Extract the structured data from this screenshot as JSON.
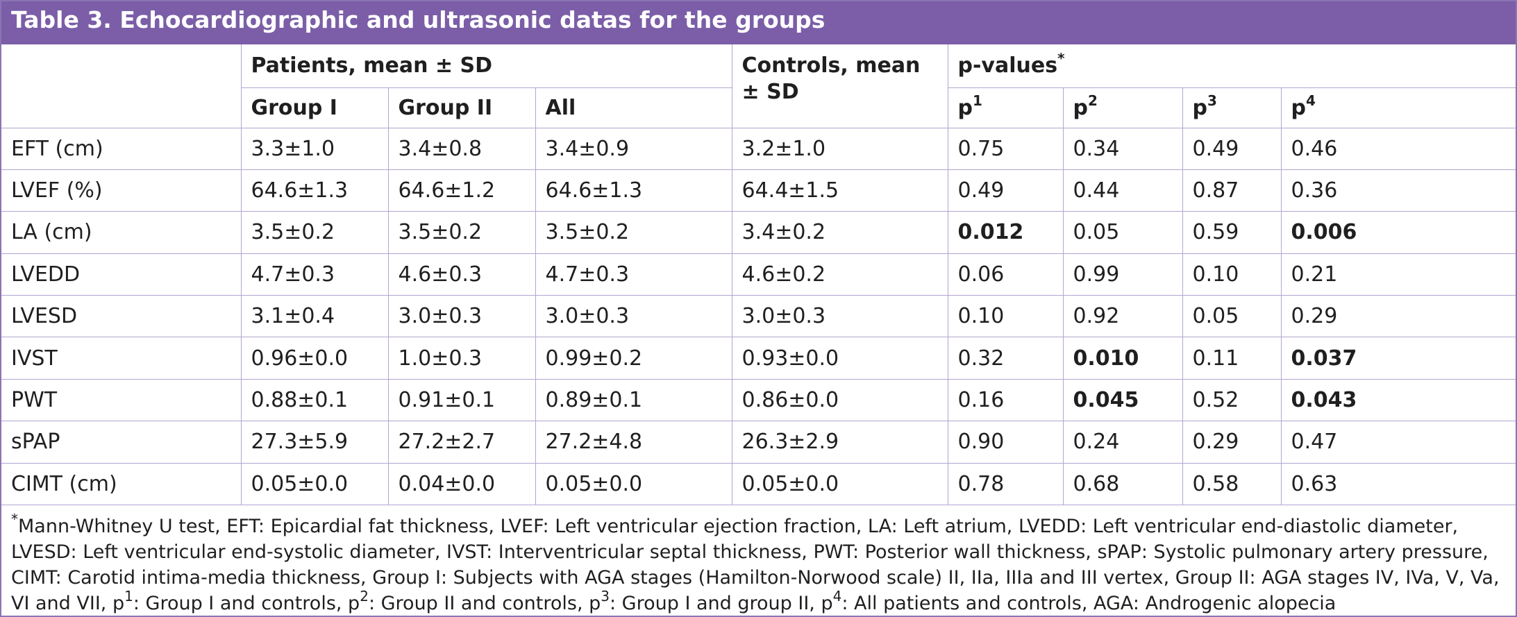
{
  "title": "Table 3. Echocardiographic and ultrasonic datas for the groups",
  "headers": {
    "patients": "Patients, mean ± SD",
    "controls": "Controls, mean ± SD",
    "pvalues": "p-values",
    "pvalues_sup": "*",
    "group1": "Group I",
    "group2": "Group II",
    "all": "All",
    "p_prefix": "p",
    "p1_sup": "1",
    "p2_sup": "2",
    "p3_sup": "3",
    "p4_sup": "4"
  },
  "rows": [
    {
      "label": "EFT (cm)",
      "g1": "3.3±1.0",
      "g2": "3.4±0.8",
      "all": "3.4±0.9",
      "ctrl": "3.2±1.0",
      "p1": "0.75",
      "p2": "0.34",
      "p3": "0.49",
      "p4": "0.46"
    },
    {
      "label": "LVEF (%)",
      "g1": "64.6±1.3",
      "g2": "64.6±1.2",
      "all": "64.6±1.3",
      "ctrl": "64.4±1.5",
      "p1": "0.49",
      "p2": "0.44",
      "p3": "0.87",
      "p4": "0.36"
    },
    {
      "label": "LA (cm)",
      "g1": "3.5±0.2",
      "g2": "3.5±0.2",
      "all": "3.5±0.2",
      "ctrl": "3.4±0.2",
      "p1": "0.012",
      "p2": "0.05",
      "p3": "0.59",
      "p4": "0.006"
    },
    {
      "label": "LVEDD",
      "g1": "4.7±0.3",
      "g2": "4.6±0.3",
      "all": "4.7±0.3",
      "ctrl": "4.6±0.2",
      "p1": "0.06",
      "p2": "0.99",
      "p3": "0.10",
      "p4": "0.21"
    },
    {
      "label": "LVESD",
      "g1": "3.1±0.4",
      "g2": "3.0±0.3",
      "all": "3.0±0.3",
      "ctrl": "3.0±0.3",
      "p1": "0.10",
      "p2": "0.92",
      "p3": "0.05",
      "p4": "0.29"
    },
    {
      "label": "IVST",
      "g1": "0.96±0.0",
      "g2": "1.0±0.3",
      "all": "0.99±0.2",
      "ctrl": "0.93±0.0",
      "p1": "0.32",
      "p2": "0.010",
      "p3": "0.11",
      "p4": "0.037"
    },
    {
      "label": "PWT",
      "g1": "0.88±0.1",
      "g2": "0.91±0.1",
      "all": "0.89±0.1",
      "ctrl": "0.86±0.0",
      "p1": "0.16",
      "p2": "0.045",
      "p3": "0.52",
      "p4": "0.043"
    },
    {
      "label": "sPAP",
      "g1": "27.3±5.9",
      "g2": "27.2±2.7",
      "all": "27.2±4.8",
      "ctrl": "26.3±2.9",
      "p1": "0.90",
      "p2": "0.24",
      "p3": "0.29",
      "p4": "0.47"
    },
    {
      "label": "CIMT (cm)",
      "g1": "0.05±0.0",
      "g2": "0.04±0.0",
      "all": "0.05±0.0",
      "ctrl": "0.05±0.0",
      "p1": "0.78",
      "p2": "0.68",
      "p3": "0.58",
      "p4": "0.63"
    }
  ],
  "footnote": {
    "star": "*",
    "part1": "Mann-Whitney U test, EFT: Epicardial fat thickness, LVEF: Left ventricular ejection fraction, LA: Left atrium, LVEDD: Left ventricular end-diastolic diameter, LVESD: Left ventricular end-systolic diameter, IVST: Interventricular septal thickness, PWT: Posterior wall thickness, sPAP: Systolic pulmonary artery pressure, CIMT: Carotid intima-media thickness, Group I: Subjects with AGA stages (Hamilton-Norwood scale) II, IIa, IIIa and III vertex, Group II: AGA stages IV, IVa, V, Va, VI and VII, p",
    "sup1": "1",
    "part2": ": Group I and controls, p",
    "sup2": "2",
    "part3": ": Group II and controls, p",
    "sup3": "3",
    "part4": ": Group I and group II, p",
    "sup4": "4",
    "part5": ": All patients and controls, AGA: Androgenic alopecia"
  }
}
